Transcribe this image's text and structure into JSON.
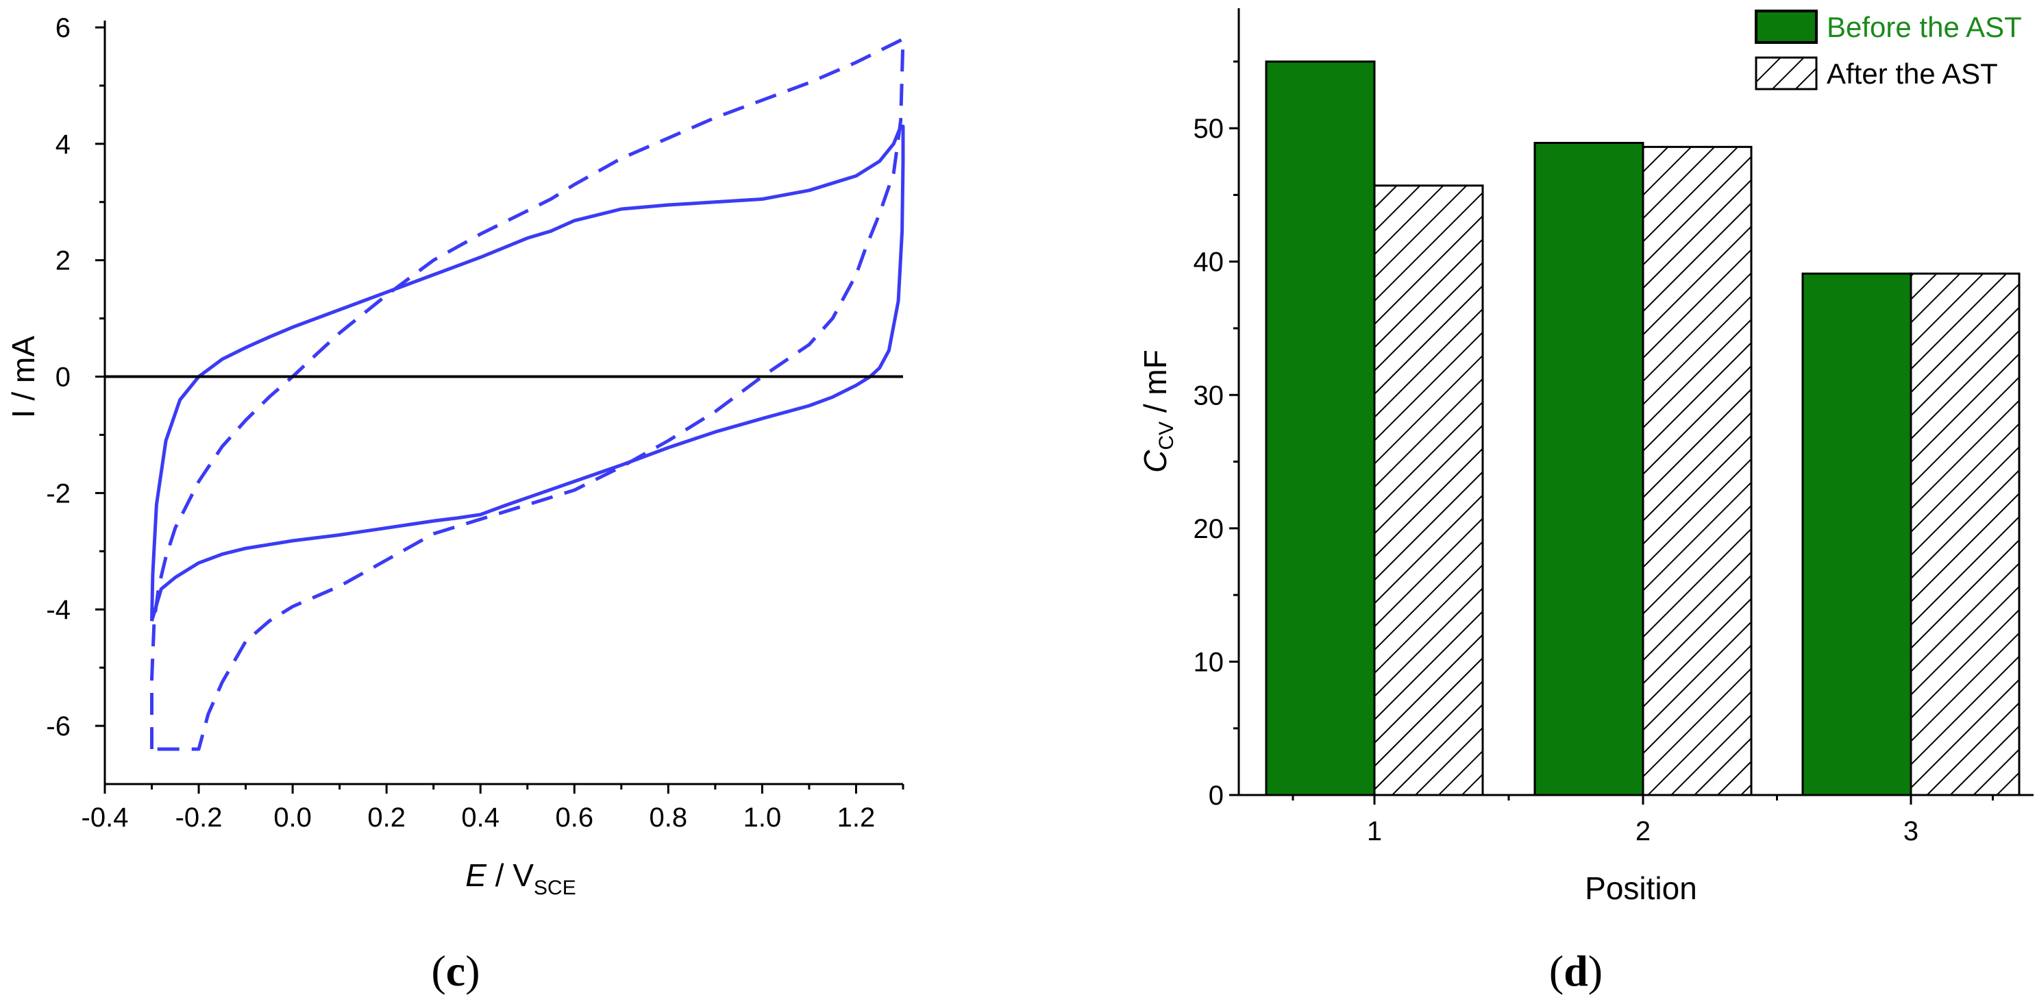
{
  "panels": {
    "c": {
      "label_open": "(",
      "label_letter": "c",
      "label_close": ")"
    },
    "d": {
      "label_open": "(",
      "label_letter": "d",
      "label_close": ")"
    }
  },
  "colors": {
    "cv_line": "#3b3bf5",
    "before_bar": "#0a7a0a",
    "before_legend_text": "#1a8a1a",
    "after_bar": "#ffffff",
    "axis": "#000000"
  },
  "chart_data": [
    {
      "panel": "c",
      "type": "line",
      "xlabel_main": "E",
      "xlabel_unit": " / V",
      "xlabel_sub": "SCE",
      "ylabel": "I / mA",
      "xlim": [
        -0.4,
        1.3
      ],
      "ylim": [
        -7,
        6
      ],
      "xticks": [
        "-0.4",
        "-0.2",
        "0.0",
        "0.2",
        "0.4",
        "0.6",
        "0.8",
        "1.0",
        "1.2"
      ],
      "xtick_values": [
        -0.4,
        -0.2,
        0.0,
        0.2,
        0.4,
        0.6,
        0.8,
        1.0,
        1.2
      ],
      "yticks": [
        "-6",
        "-4",
        "-2",
        "0",
        "2",
        "4",
        "6"
      ],
      "ytick_values": [
        -6,
        -4,
        -2,
        0,
        2,
        4,
        6
      ],
      "zero_line": 0,
      "series": [
        {
          "style": "solid",
          "x": [
            -0.3,
            -0.298,
            -0.29,
            -0.27,
            -0.24,
            -0.2,
            -0.15,
            -0.1,
            -0.05,
            0.0,
            0.05,
            0.1,
            0.2,
            0.3,
            0.4,
            0.5,
            0.55,
            0.6,
            0.7,
            0.8,
            0.9,
            1.0,
            1.1,
            1.2,
            1.25,
            1.28,
            1.295,
            1.3,
            1.3,
            1.298,
            1.29,
            1.27,
            1.25,
            1.23,
            1.2,
            1.15,
            1.1,
            1.0,
            0.9,
            0.8,
            0.7,
            0.6,
            0.5,
            0.45,
            0.4,
            0.35,
            0.3,
            0.2,
            0.1,
            0.0,
            -0.1,
            -0.15,
            -0.2,
            -0.25,
            -0.28,
            -0.3
          ],
          "y": [
            -4.2,
            -3.4,
            -2.2,
            -1.1,
            -0.4,
            0.0,
            0.3,
            0.5,
            0.68,
            0.85,
            1.0,
            1.15,
            1.45,
            1.75,
            2.05,
            2.38,
            2.5,
            2.68,
            2.88,
            2.95,
            3.0,
            3.05,
            3.2,
            3.45,
            3.7,
            4.0,
            4.3,
            4.3,
            3.7,
            2.5,
            1.3,
            0.45,
            0.15,
            0.0,
            -0.15,
            -0.35,
            -0.5,
            -0.72,
            -0.95,
            -1.22,
            -1.52,
            -1.8,
            -2.08,
            -2.22,
            -2.37,
            -2.43,
            -2.48,
            -2.6,
            -2.72,
            -2.82,
            -2.95,
            -3.05,
            -3.2,
            -3.45,
            -3.65,
            -4.2
          ]
        },
        {
          "style": "dashed",
          "x": [
            -0.3,
            -0.3,
            -0.295,
            -0.285,
            -0.27,
            -0.25,
            -0.2,
            -0.15,
            -0.1,
            -0.05,
            0.0,
            0.05,
            0.1,
            0.2,
            0.3,
            0.4,
            0.5,
            0.55,
            0.6,
            0.7,
            0.8,
            0.9,
            1.0,
            1.1,
            1.2,
            1.25,
            1.3,
            1.3,
            1.295,
            1.28,
            1.25,
            1.22,
            1.2,
            1.15,
            1.1,
            1.0,
            0.95,
            0.9,
            0.8,
            0.7,
            0.6,
            0.5,
            0.4,
            0.3,
            0.2,
            0.1,
            0.0,
            -0.05,
            -0.1,
            -0.15,
            -0.18,
            -0.2,
            -0.25,
            -0.3
          ],
          "y": [
            -6.4,
            -5.2,
            -4.2,
            -3.6,
            -3.1,
            -2.6,
            -1.8,
            -1.2,
            -0.75,
            -0.35,
            0.0,
            0.38,
            0.75,
            1.4,
            2.0,
            2.45,
            2.85,
            3.05,
            3.3,
            3.75,
            4.1,
            4.45,
            4.75,
            5.05,
            5.4,
            5.6,
            5.8,
            5.8,
            4.4,
            3.5,
            2.8,
            2.2,
            1.75,
            1.0,
            0.55,
            0.0,
            -0.3,
            -0.6,
            -1.1,
            -1.55,
            -1.95,
            -2.2,
            -2.45,
            -2.7,
            -3.15,
            -3.6,
            -3.95,
            -4.2,
            -4.55,
            -5.25,
            -5.8,
            -6.4,
            -6.4,
            -6.4
          ]
        }
      ]
    },
    {
      "panel": "d",
      "type": "bar",
      "xlabel": "Position",
      "ylabel_main": "C",
      "ylabel_sub": "CV",
      "ylabel_unit": " / mF",
      "categories": [
        "1",
        "2",
        "3"
      ],
      "ylim": [
        0,
        59
      ],
      "yticks": [
        "0",
        "10",
        "20",
        "30",
        "40",
        "50"
      ],
      "ytick_values": [
        0,
        10,
        20,
        30,
        40,
        50
      ],
      "legend_position": "top-right",
      "series": [
        {
          "name": "Before the AST",
          "fill": "solid",
          "values": [
            55.0,
            48.9,
            39.1
          ]
        },
        {
          "name": "After the AST",
          "fill": "hatched",
          "values": [
            45.7,
            48.6,
            39.1
          ]
        }
      ]
    }
  ]
}
